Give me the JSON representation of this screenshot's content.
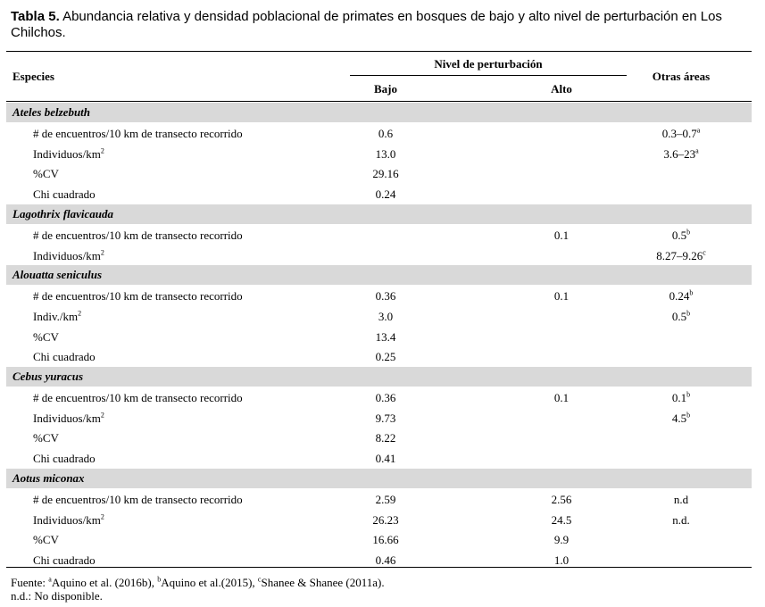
{
  "caption": {
    "label": "Tabla 5.",
    "text": " Abundancia relativa y densidad poblacional de primates en bosques de bajo y alto nivel de perturbación en Los Chilchos."
  },
  "table": {
    "header": {
      "species": "Especies",
      "level": "Nivel de perturbación",
      "low": "Bajo",
      "high": "Alto",
      "other": "Otras áreas"
    },
    "groups": [
      {
        "species": "Ateles belzebuth",
        "rows": [
          {
            "label": "# de encuentros/10 km de transecto recorrido",
            "sup": "",
            "low": "0.6",
            "high": "",
            "other": "0.3–0.7",
            "other_sup": "a"
          },
          {
            "label": "Individuos/km",
            "sup": "2",
            "low": "13.0",
            "high": "",
            "other": "3.6–23",
            "other_sup": "a"
          },
          {
            "label": "%CV",
            "sup": "",
            "low": "29.16",
            "high": "",
            "other": "",
            "other_sup": ""
          },
          {
            "label": "Chi cuadrado",
            "sup": "",
            "low": "0.24",
            "high": "",
            "other": "",
            "other_sup": ""
          }
        ]
      },
      {
        "species": "Lagothrix flavicauda",
        "rows": [
          {
            "label": "# de encuentros/10 km de transecto recorrido",
            "sup": "",
            "low": "",
            "high": "0.1",
            "other": "0.5",
            "other_sup": "b"
          },
          {
            "label": "Individuos/km",
            "sup": "2",
            "low": "",
            "high": "",
            "other": "8.27–9.26",
            "other_sup": "c"
          }
        ]
      },
      {
        "species": "Alouatta seniculus",
        "rows": [
          {
            "label": "# de encuentros/10 km de transecto recorrido",
            "sup": "",
            "low": "0.36",
            "high": "0.1",
            "other": "0.24",
            "other_sup": "b"
          },
          {
            "label": "Indiv./km",
            "sup": "2",
            "low": "3.0",
            "high": "",
            "other": "0.5",
            "other_sup": "b"
          },
          {
            "label": "%CV",
            "sup": "",
            "low": "13.4",
            "high": "",
            "other": "",
            "other_sup": ""
          },
          {
            "label": "Chi cuadrado",
            "sup": "",
            "low": "0.25",
            "high": "",
            "other": "",
            "other_sup": ""
          }
        ]
      },
      {
        "species": "Cebus yuracus",
        "rows": [
          {
            "label": "# de encuentros/10 km de transecto recorrido",
            "sup": "",
            "low": "0.36",
            "high": "0.1",
            "other": "0.1",
            "other_sup": "b"
          },
          {
            "label": "Individuos/km",
            "sup": "2",
            "low": "9.73",
            "high": "",
            "other": "4.5",
            "other_sup": "b"
          },
          {
            "label": "%CV",
            "sup": "",
            "low": "8.22",
            "high": "",
            "other": "",
            "other_sup": ""
          },
          {
            "label": "Chi cuadrado",
            "sup": "",
            "low": "0.41",
            "high": "",
            "other": "",
            "other_sup": ""
          }
        ]
      },
      {
        "species": "Aotus miconax",
        "rows": [
          {
            "label": "# de encuentros/10 km de transecto recorrido",
            "sup": "",
            "low": "2.59",
            "high": "2.56",
            "other": "n.d",
            "other_sup": ""
          },
          {
            "label": "Individuos/km",
            "sup": "2",
            "low": "26.23",
            "high": "24.5",
            "other": "n.d.",
            "other_sup": ""
          },
          {
            "label": "%CV",
            "sup": "",
            "low": "16.66",
            "high": "9.9",
            "other": "",
            "other_sup": ""
          },
          {
            "label": "Chi cuadrado",
            "sup": "",
            "low": "0.46",
            "high": "1.0",
            "other": "",
            "other_sup": ""
          }
        ]
      }
    ]
  },
  "footnote": {
    "prefix": "Fuente: ",
    "items": [
      {
        "sup": "a",
        "text": "Aquino et al. (2016b), "
      },
      {
        "sup": "b",
        "text": "Aquino et al.(2015), "
      },
      {
        "sup": "c",
        "text": "Shanee & Shanee (2011a)."
      }
    ],
    "line2": "n.d.: No disponible."
  }
}
